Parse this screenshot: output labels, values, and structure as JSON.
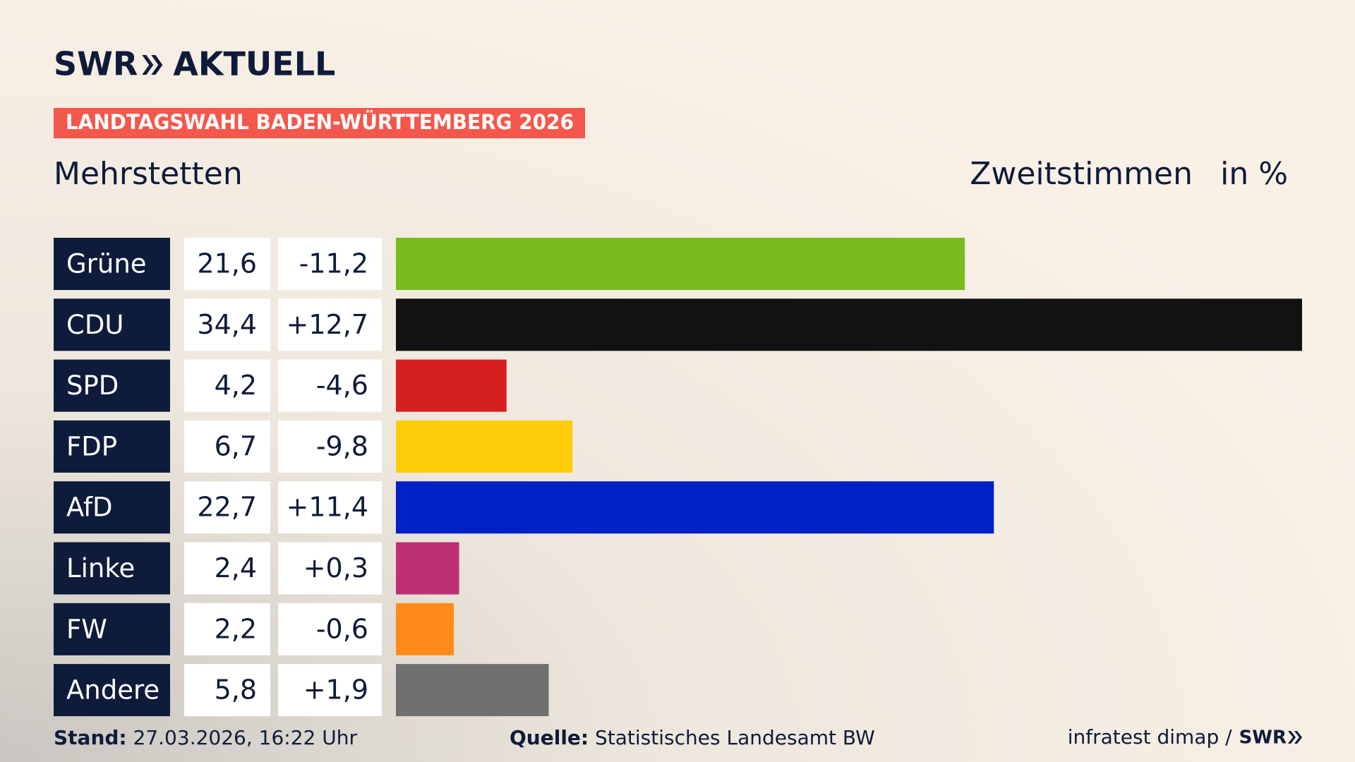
{
  "header": {
    "brand": "SWR",
    "brand_suffix": "AKTUELL",
    "banner": "LANDTAGSWAHL BADEN-WÜRTTEMBERG 2026"
  },
  "chart_data": {
    "type": "bar",
    "orientation": "horizontal",
    "title": "Mehrstetten",
    "series_label": "Zweitstimmen",
    "unit_label": "in %",
    "categories": [
      "Grüne",
      "CDU",
      "SPD",
      "FDP",
      "AfD",
      "Linke",
      "FW",
      "Andere"
    ],
    "values": [
      21.6,
      34.4,
      4.2,
      6.7,
      22.7,
      2.4,
      2.2,
      5.8
    ],
    "value_labels": [
      "21,6",
      "34,4",
      "4,2",
      "6,7",
      "22,7",
      "2,4",
      "2,2",
      "5,8"
    ],
    "changes": [
      -11.2,
      12.7,
      -4.6,
      -9.8,
      11.4,
      0.3,
      -0.6,
      1.9
    ],
    "change_labels": [
      "-11,2",
      "+12,7",
      "-4,6",
      "-9,8",
      "+11,4",
      "+0,3",
      "-0,6",
      "+1,9"
    ],
    "colors": [
      "#78bc1e",
      "#121212",
      "#d61f1f",
      "#ffcc0a",
      "#0021c6",
      "#be3075",
      "#ff8c1a",
      "#707070"
    ]
  },
  "footer": {
    "stand_label": "Stand:",
    "stand": "27.03.2026, 16:22 Uhr",
    "source_label": "Quelle:",
    "source": "Statistisches Landesamt BW",
    "credit": "infratest dimap /",
    "credit_brand": "SWR"
  }
}
